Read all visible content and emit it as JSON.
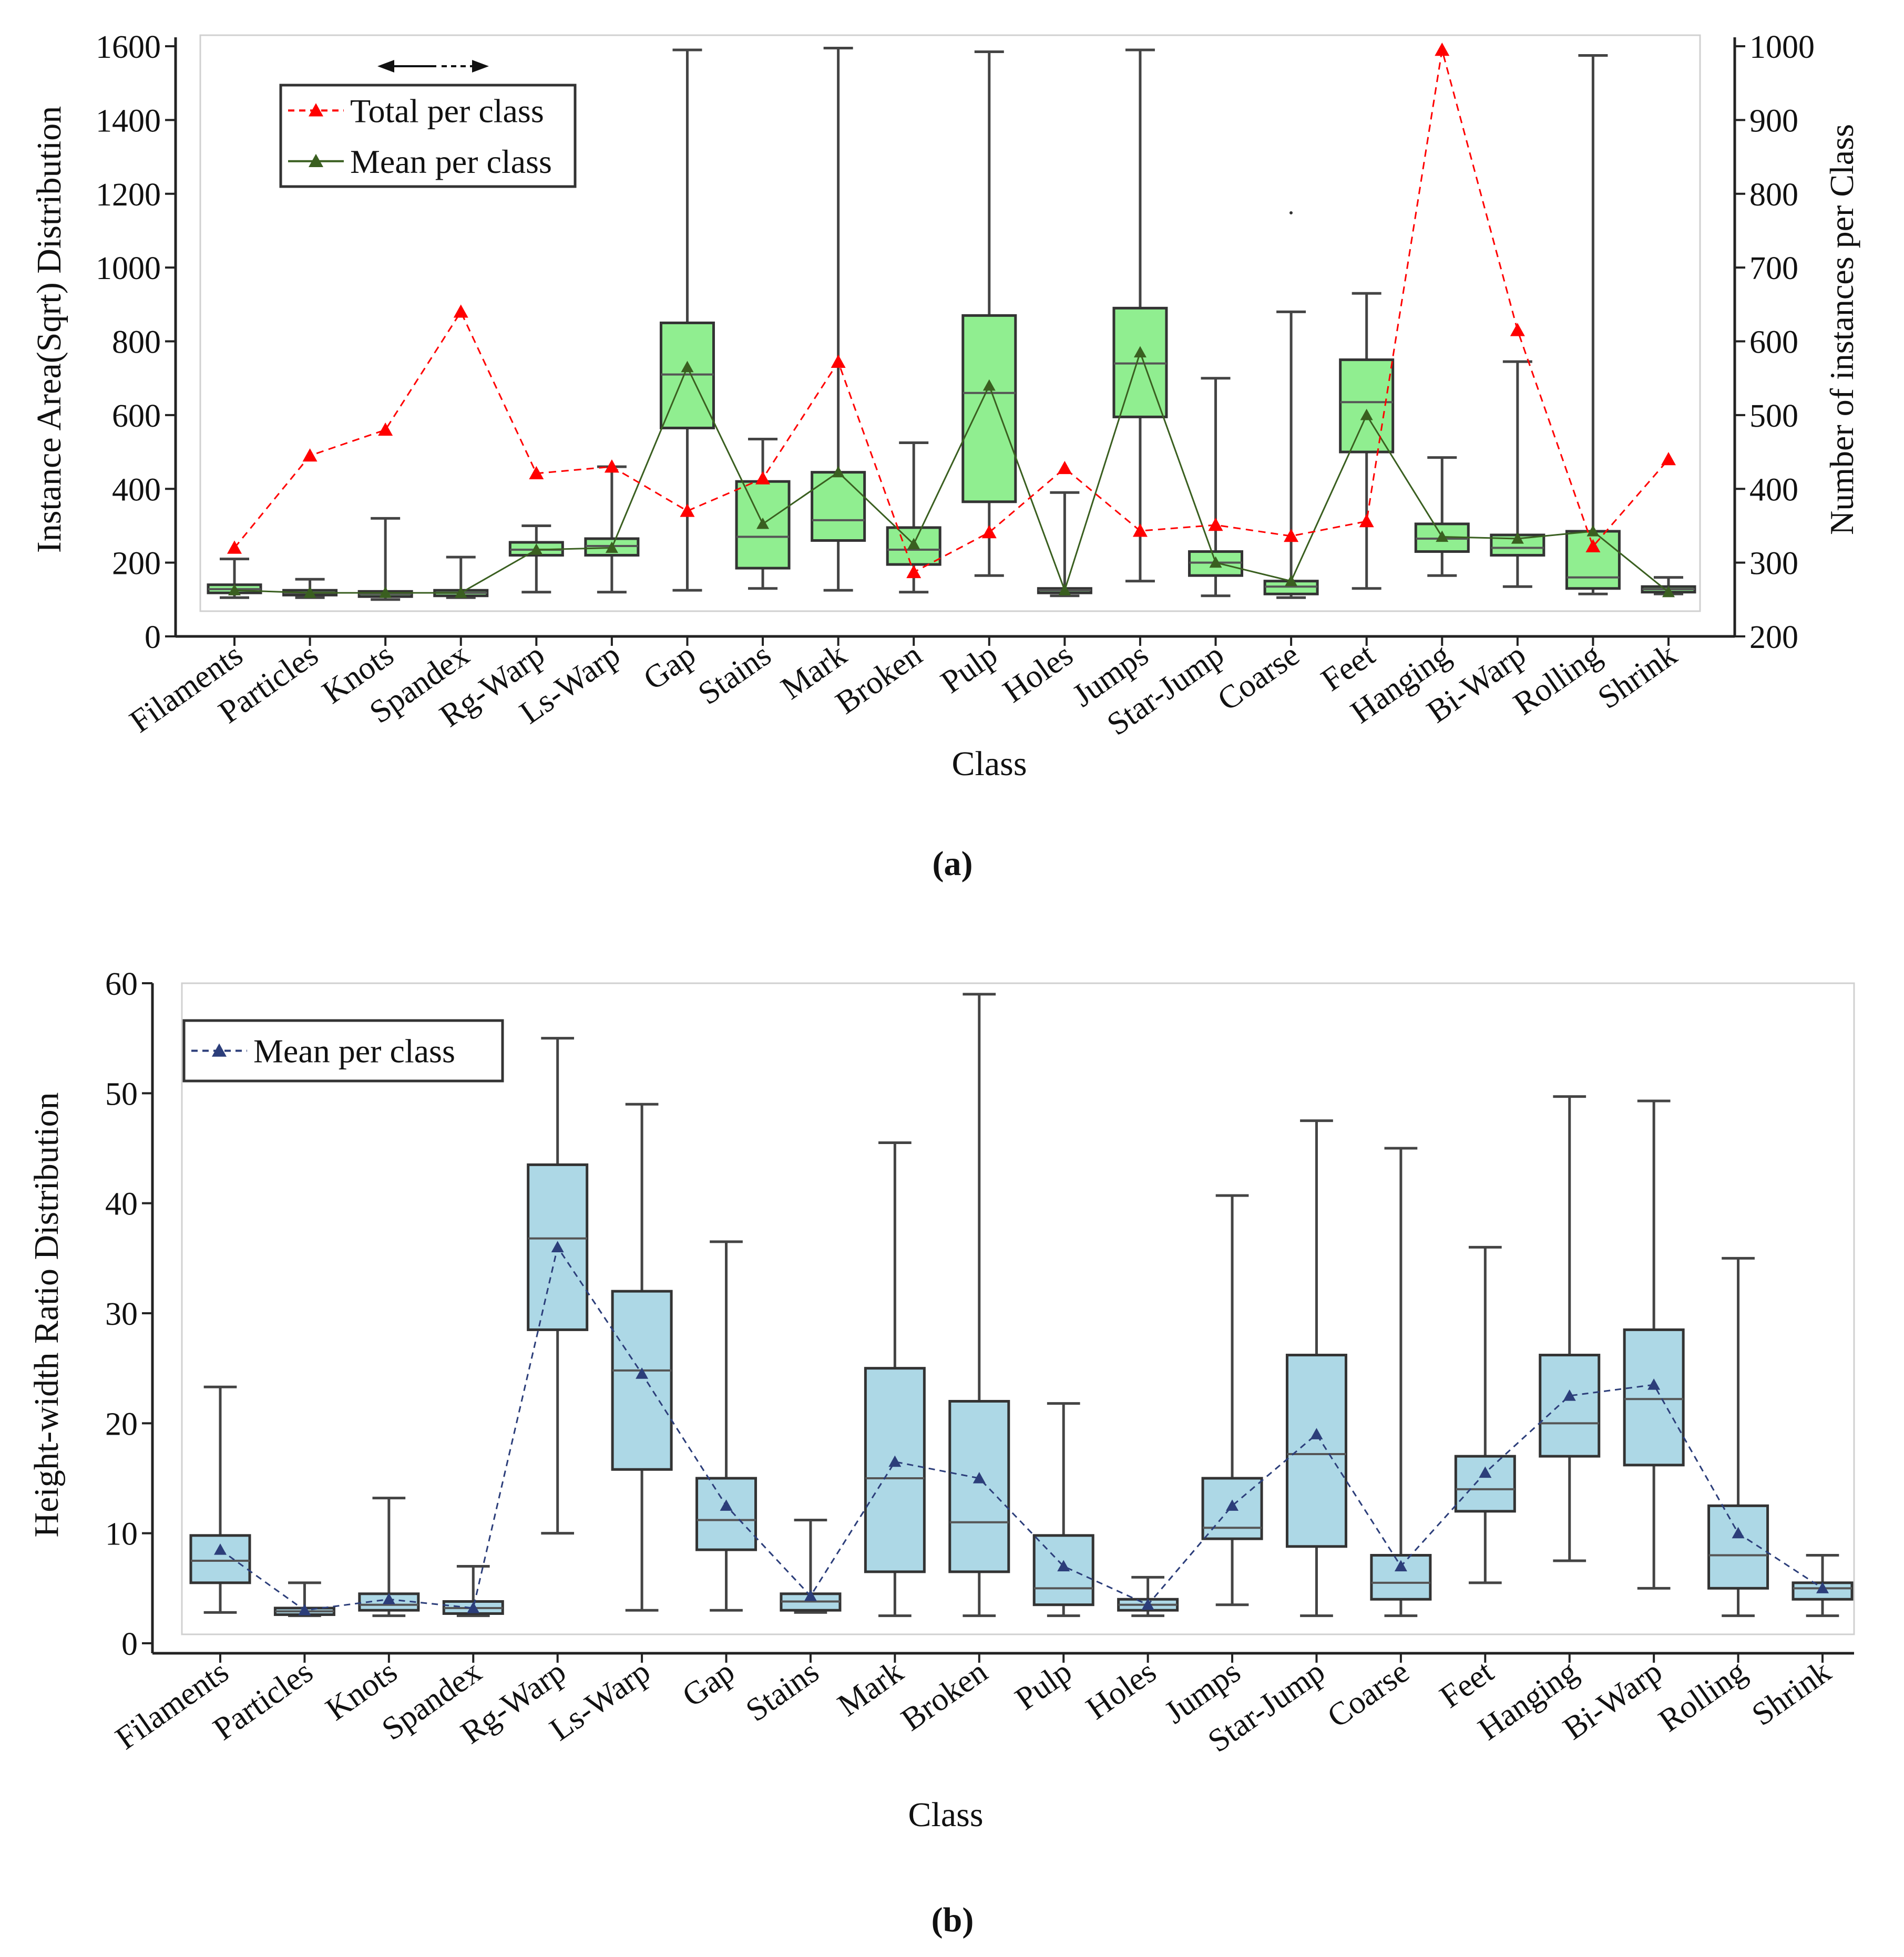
{
  "chart_data": [
    {
      "type": "box",
      "caption": "(a)",
      "xlabel": "Class",
      "ylabel": "Instance Area(Sqrt) Distribution",
      "y2label": "Number of instances per Class",
      "ylim": [
        0,
        1600
      ],
      "y2lim": [
        200,
        1000
      ],
      "yticks": [
        "0",
        "200",
        "400",
        "600",
        "800",
        "1000",
        "1200",
        "1400",
        "1600"
      ],
      "y2ticks": [
        "200",
        "300",
        "400",
        "500",
        "600",
        "700",
        "800",
        "900",
        "1000"
      ],
      "box_color": "#90EE90",
      "legend": {
        "placement": "top-left",
        "entries": [
          "Total per class",
          "Mean per class"
        ]
      },
      "total_color": "#ff0000",
      "mean_color": "#3a5f20",
      "categories": [
        "Filaments",
        "Particles",
        "Knots",
        "Spandex",
        "Rg-Warp",
        "Ls-Warp",
        "Gap",
        "Stains",
        "Mark",
        "Broken",
        "Pulp",
        "Holes",
        "Jumps",
        "Star-Jump",
        "Coarse",
        "Feet",
        "Hanging",
        "Bi-Warp",
        "Rolling",
        "Shrink"
      ],
      "boxes": [
        [
          105,
          118,
          128,
          140,
          210
        ],
        [
          105,
          112,
          118,
          125,
          155
        ],
        [
          100,
          108,
          115,
          122,
          320
        ],
        [
          105,
          110,
          118,
          125,
          215
        ],
        [
          120,
          220,
          235,
          255,
          300
        ],
        [
          120,
          220,
          245,
          265,
          460
        ],
        [
          125,
          565,
          710,
          850,
          1590
        ],
        [
          130,
          185,
          270,
          420,
          535
        ],
        [
          125,
          260,
          315,
          445,
          1595
        ],
        [
          120,
          195,
          235,
          295,
          525
        ],
        [
          165,
          365,
          660,
          870,
          1585
        ],
        [
          110,
          118,
          125,
          130,
          390
        ],
        [
          150,
          595,
          740,
          890,
          1590
        ],
        [
          110,
          165,
          200,
          230,
          700
        ],
        [
          105,
          115,
          135,
          150,
          880
        ],
        [
          130,
          500,
          635,
          750,
          930
        ],
        [
          165,
          230,
          265,
          305,
          485
        ],
        [
          135,
          220,
          240,
          275,
          745
        ],
        [
          115,
          130,
          160,
          285,
          1575
        ],
        [
          115,
          120,
          128,
          135,
          160
        ]
      ],
      "mean_per_class": [
        125,
        118,
        118,
        118,
        235,
        240,
        730,
        305,
        445,
        250,
        680,
        125,
        770,
        200,
        150,
        600,
        270,
        265,
        285,
        120
      ],
      "total_per_class": [
        320,
        445,
        480,
        640,
        421,
        430,
        370,
        414,
        572,
        287,
        341,
        428,
        343,
        351,
        336,
        356,
        995,
        615,
        322,
        440
      ]
    },
    {
      "type": "box",
      "caption": "(b)",
      "xlabel": "Class",
      "ylabel": "Height-width Ratio Distribution",
      "ylim": [
        0,
        60
      ],
      "yticks": [
        "0",
        "10",
        "20",
        "30",
        "40",
        "50",
        "60"
      ],
      "box_color": "#ADD8E6",
      "legend": {
        "placement": "top-left",
        "entries": [
          "Mean per class"
        ]
      },
      "mean_color": "#2c3e7a",
      "categories": [
        "Filaments",
        "Particles",
        "Knots",
        "Spandex",
        "Rg-Warp",
        "Ls-Warp",
        "Gap",
        "Stains",
        "Mark",
        "Broken",
        "Pulp",
        "Holes",
        "Jumps",
        "Star-Jump",
        "Coarse",
        "Feet",
        "Hanging",
        "Bi-Warp",
        "Rolling",
        "Shrink"
      ],
      "boxes": [
        [
          2.8,
          5.5,
          7.5,
          9.8,
          23.3
        ],
        [
          2.5,
          2.6,
          2.9,
          3.2,
          5.5
        ],
        [
          2.5,
          3,
          3.5,
          4.5,
          13.2
        ],
        [
          2.5,
          2.7,
          3.2,
          3.8,
          7
        ],
        [
          10,
          28.5,
          36.8,
          43.5,
          55
        ],
        [
          3,
          15.8,
          24.8,
          32,
          49
        ],
        [
          3,
          8.5,
          11.2,
          15,
          36.5
        ],
        [
          2.8,
          3,
          3.8,
          4.5,
          11.2
        ],
        [
          2.5,
          6.5,
          15,
          25,
          45.5
        ],
        [
          2.5,
          6.5,
          11,
          22,
          59
        ],
        [
          2.5,
          3.5,
          5,
          9.8,
          21.8
        ],
        [
          2.5,
          3,
          3.5,
          4,
          6
        ],
        [
          3.5,
          9.5,
          10.5,
          15,
          40.7
        ],
        [
          2.5,
          8.8,
          17.2,
          26.2,
          47.5
        ],
        [
          2.5,
          4,
          5.5,
          8,
          45
        ],
        [
          5.5,
          12,
          14,
          17,
          36
        ],
        [
          7.5,
          17,
          20,
          26.2,
          49.7
        ],
        [
          5,
          16.2,
          22.2,
          28.5,
          49.3
        ],
        [
          2.5,
          5,
          8,
          12.5,
          35
        ],
        [
          2.5,
          4,
          5,
          5.5,
          8
        ]
      ],
      "mean_per_class": [
        8.5,
        3,
        4,
        3.2,
        36,
        24.5,
        12.5,
        4.3,
        16.5,
        15,
        7,
        3.5,
        12.5,
        19,
        7,
        15.5,
        22.5,
        23.5,
        10,
        5
      ]
    }
  ]
}
